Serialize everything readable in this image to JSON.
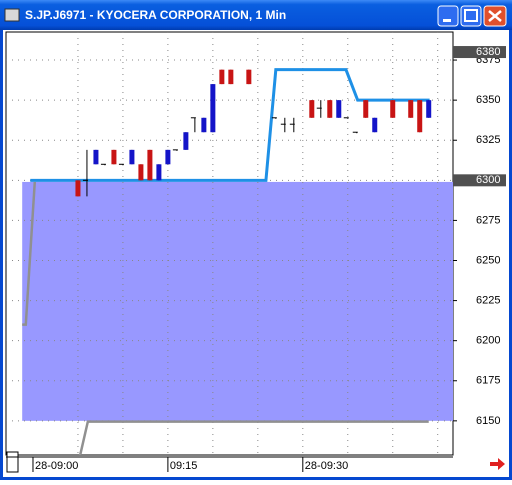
{
  "window": {
    "title": "S.JP.J6971 - KYOCERA CORPORATION, 1 Min"
  },
  "chart_data": {
    "type": "candlestick",
    "candles": {
      "x": [
        5,
        6,
        7,
        8,
        9,
        10,
        11,
        12,
        13,
        14,
        15,
        16,
        17,
        18,
        19,
        20,
        21,
        22,
        24,
        27,
        28,
        29,
        31,
        32,
        33,
        34,
        35,
        36,
        37,
        38,
        40,
        42,
        43,
        44
      ],
      "open": [
        6300,
        6300,
        6310,
        6310,
        6319,
        6310,
        6310,
        6310,
        6319,
        6300,
        6310,
        6319,
        6319,
        6339,
        6330,
        6330,
        6369,
        6369,
        6369,
        6339,
        6335,
        6335,
        6350,
        6345,
        6350,
        6339,
        6339,
        6330,
        6350,
        6330,
        6350,
        6350,
        6350,
        6339
      ],
      "high": [
        6300,
        6319,
        6319,
        6310,
        6319,
        6310,
        6319,
        6310,
        6319,
        6310,
        6319,
        6319,
        6330,
        6339,
        6339,
        6360,
        6369,
        6369,
        6369,
        6339,
        6339,
        6339,
        6350,
        6350,
        6350,
        6350,
        6339,
        6330,
        6350,
        6339,
        6350,
        6350,
        6350,
        6350
      ],
      "low": [
        6290,
        6290,
        6310,
        6310,
        6310,
        6310,
        6310,
        6300,
        6300,
        6300,
        6310,
        6319,
        6319,
        6330,
        6330,
        6330,
        6360,
        6360,
        6360,
        6339,
        6330,
        6330,
        6339,
        6339,
        6339,
        6339,
        6339,
        6330,
        6339,
        6330,
        6339,
        6339,
        6330,
        6339
      ],
      "close": [
        6290,
        6300,
        6319,
        6310,
        6310,
        6310,
        6319,
        6300,
        6300,
        6310,
        6319,
        6319,
        6330,
        6339,
        6339,
        6360,
        6360,
        6360,
        6360,
        6339,
        6335,
        6335,
        6339,
        6345,
        6339,
        6350,
        6339,
        6330,
        6339,
        6339,
        6339,
        6339,
        6330,
        6350
      ],
      "up_color": "#1414c8",
      "down_color": "#c81414",
      "wick_color": "#000000"
    },
    "lines": [
      {
        "color": "#1e90e6",
        "x": [
          -0.3,
          25.9,
          27,
          34.8,
          36.1,
          44.1
        ],
        "values": [
          6300,
          6300,
          6369,
          6369,
          6350,
          6350
        ]
      },
      {
        "color": "#909090",
        "x": [
          -1.2,
          -0.8,
          0.2
        ],
        "values": [
          6210,
          6210,
          6299
        ]
      },
      {
        "color": "#909090",
        "x": [
          5.2,
          6.1,
          44
        ],
        "values": [
          6127.5,
          6149.5,
          6149.5
        ]
      }
    ],
    "band": {
      "color": "#9898ff",
      "x": [
        -1.2,
        46.7
      ],
      "values": [
        6150,
        6299
      ]
    },
    "price_markers": [
      6380,
      6300
    ],
    "xlim": [
      -3,
      46.7
    ],
    "ylim": [
      6128.7,
      6392.5
    ],
    "yticks": [
      6150,
      6175,
      6200,
      6225,
      6250,
      6275,
      6300,
      6325,
      6350,
      6375
    ],
    "xticks": [
      {
        "value": 0,
        "label": "28-09:00"
      },
      {
        "value": 15,
        "label": "09:15"
      },
      {
        "value": 30,
        "label": "28-09:30"
      }
    ],
    "xgrid": [
      5,
      10,
      15,
      20,
      25,
      30,
      35,
      40,
      45
    ],
    "grid": true
  }
}
